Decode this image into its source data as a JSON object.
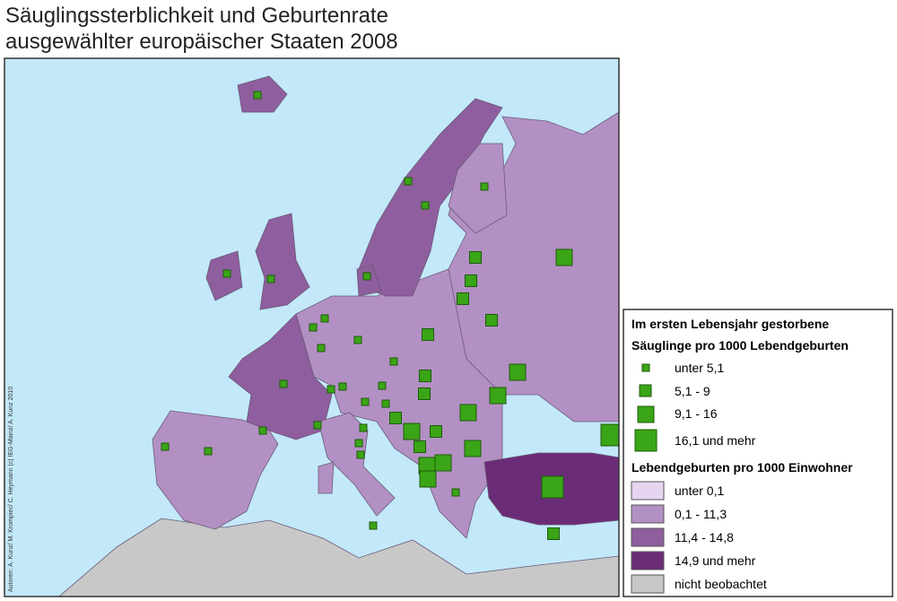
{
  "title": [
    "Säuglingssterblichkeit und Geburtenrate",
    "ausgewählter europäischer Staaten 2008"
  ],
  "credit": "Autoren: A. Kunz/ M. Krompiec/ C. Heymann (c) IEG-Mainz/ A. Kunz 2010",
  "legend": {
    "mortality": {
      "title": [
        "Im ersten Lebensjahr gestorbene",
        "Säuglinge pro 1000  Lebendgeburten"
      ],
      "classes": [
        "unter  5,1",
        "5,1 -  9",
        "9,1 - 16",
        "16,1 und mehr"
      ]
    },
    "birth_rate": {
      "title": "Lebendgeburten pro 1000 Einwohner",
      "classes": [
        "unter  0,1",
        "0,1 - 11,3",
        "11,4 - 14,8",
        "14,9 und mehr"
      ],
      "no_data": "nicht beobachtet"
    }
  }
}
